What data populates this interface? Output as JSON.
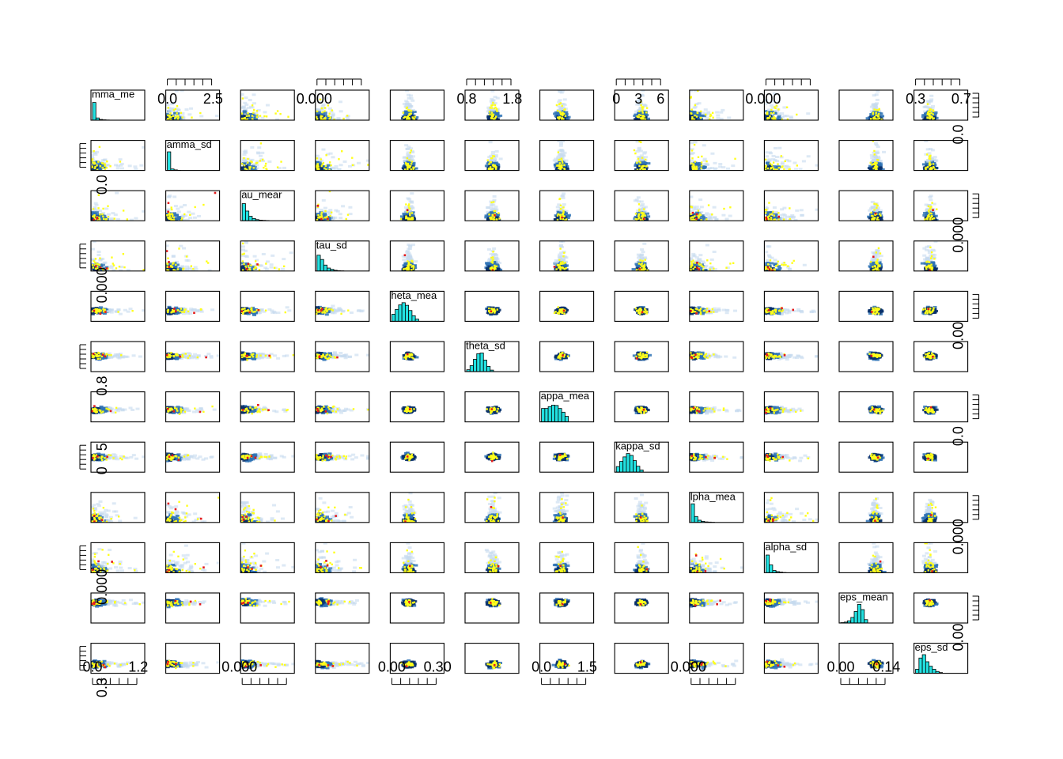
{
  "chart_data": {
    "type": "scatter",
    "variables": [
      "gamma_mean",
      "gamma_sd",
      "tau_mean",
      "tau_sd",
      "theta_mean",
      "theta_sd",
      "kappa_mean",
      "kappa_sd",
      "alpha_mean",
      "alpha_sd",
      "eps_mean",
      "eps_sd"
    ],
    "diag_labels": [
      "mma_me",
      "amma_sd",
      "au_mear",
      "tau_sd",
      "heta_mea",
      "theta_sd",
      "appa_mea",
      "kappa_sd",
      "lpha_mea",
      "alpha_sd",
      "eps_mean",
      "eps_sd"
    ],
    "top_axis_labels": [
      {
        "col": 1,
        "labels": [
          "0.0",
          "2.5"
        ]
      },
      {
        "col": 3,
        "labels": [
          "0.000"
        ]
      },
      {
        "col": 5,
        "labels": [
          "0.8",
          "1.8"
        ]
      },
      {
        "col": 7,
        "labels": [
          "0",
          "3",
          "6"
        ]
      },
      {
        "col": 9,
        "labels": [
          "0.000"
        ]
      },
      {
        "col": 11,
        "labels": [
          "0.3",
          "0.7"
        ]
      }
    ],
    "bottom_axis_labels": [
      {
        "col": 0,
        "labels": [
          "0.0",
          "1.2"
        ]
      },
      {
        "col": 2,
        "labels": [
          "0.000"
        ]
      },
      {
        "col": 4,
        "labels": [
          "0.00",
          "0.30"
        ]
      },
      {
        "col": 6,
        "labels": [
          "0.0",
          "1.5"
        ]
      },
      {
        "col": 8,
        "labels": [
          "0.000"
        ]
      },
      {
        "col": 10,
        "labels": [
          "0.00",
          "0.14"
        ]
      }
    ],
    "left_axis_labels": [
      {
        "row": 1,
        "labels": [
          "0.0"
        ]
      },
      {
        "row": 3,
        "labels": [
          "0.000"
        ]
      },
      {
        "row": 5,
        "labels": [
          "0.8"
        ]
      },
      {
        "row": 7,
        "labels": [
          "0",
          "5"
        ]
      },
      {
        "row": 9,
        "labels": [
          "0.000"
        ]
      },
      {
        "row": 11,
        "labels": [
          "0.3"
        ]
      }
    ],
    "right_axis_labels": [
      {
        "row": 0,
        "labels": [
          "0.0"
        ]
      },
      {
        "row": 2,
        "labels": [
          "0.000"
        ]
      },
      {
        "row": 4,
        "labels": [
          "0.00"
        ]
      },
      {
        "row": 6,
        "labels": [
          "0.0"
        ]
      },
      {
        "row": 8,
        "labels": [
          "0.000"
        ]
      },
      {
        "row": 10,
        "labels": [
          "0.00"
        ]
      }
    ],
    "diag_histograms": [
      [
        0.95,
        0.12,
        0.04,
        0.02,
        0.01,
        0,
        0,
        0
      ],
      [
        1.0,
        0.08,
        0.03,
        0.01,
        0,
        0,
        0,
        0
      ],
      [
        0.92,
        0.52,
        0.24,
        0.12,
        0.06,
        0.03,
        0.02,
        0.01
      ],
      [
        0.85,
        0.62,
        0.32,
        0.16,
        0.09,
        0.04,
        0.02,
        0.01
      ],
      [
        0.38,
        0.64,
        0.88,
        1.0,
        0.86,
        0.58,
        0.3,
        0.12
      ],
      [
        0.1,
        0.32,
        0.66,
        0.96,
        1.0,
        0.62,
        0.28,
        0.08
      ],
      [
        0.72,
        0.72,
        0.82,
        0.9,
        0.88,
        0.72,
        0.52,
        0.3
      ],
      [
        0.3,
        0.58,
        0.82,
        1.0,
        0.9,
        0.62,
        0.32,
        0.12
      ],
      [
        1.0,
        0.32,
        0.12,
        0.06,
        0.03,
        0.02,
        0.01,
        0
      ],
      [
        0.95,
        0.42,
        0.12,
        0.06,
        0.03,
        0.01,
        0,
        0
      ],
      [
        0.02,
        0.05,
        0.12,
        0.3,
        0.62,
        1.0,
        0.72,
        0.18
      ],
      [
        0.22,
        0.82,
        1.0,
        0.62,
        0.38,
        0.22,
        0.1,
        0.04
      ]
    ],
    "colors": {
      "hist_fill": "#22e1e1",
      "density_dark": "#08306b",
      "density_mid": "#2f73b5",
      "density_light": "#c6dbef",
      "points": "#ffff1a",
      "highlight": "#e31a1c"
    },
    "grid": false,
    "legend": "none"
  }
}
